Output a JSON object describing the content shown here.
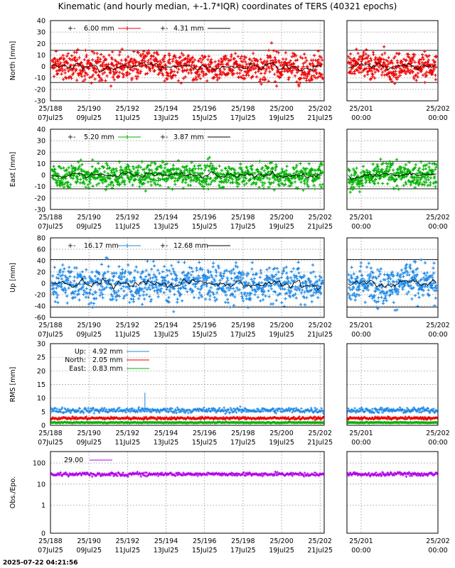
{
  "header": {
    "title": "Kinematic (and hourly median, +-1.7*IQR) coordinates of TERS (40321 epochs)"
  },
  "footer": {
    "timestamp": "2025-07-22 04:21:56"
  },
  "colors": {
    "north": "#ee0000",
    "east": "#00b000",
    "up": "#1e88e5",
    "obs": "#b000e8",
    "median": "#000000",
    "grid": "#a0a0a0"
  },
  "chart_data": [
    {
      "id": "north",
      "type": "scatter",
      "ylabel": "North [mm]",
      "ylim": [
        -30,
        40
      ],
      "yticks": [
        -30,
        -20,
        -10,
        0,
        10,
        20,
        30,
        40
      ],
      "x_ticks_left": [
        {
          "top": "25/188",
          "bottom": "07Jul25"
        },
        {
          "top": "25/190",
          "bottom": "09Jul25"
        },
        {
          "top": "25/192",
          "bottom": "11Jul25"
        },
        {
          "top": "25/194",
          "bottom": "13Jul25"
        },
        {
          "top": "25/196",
          "bottom": "15Jul25"
        },
        {
          "top": "25/198",
          "bottom": "17Jul25"
        },
        {
          "top": "25/200",
          "bottom": "19Jul25"
        },
        {
          "top": "25/202",
          "bottom": "21Jul25"
        }
      ],
      "x_ticks_right": [
        {
          "top": "25/201",
          "bottom": "00:00"
        },
        {
          "top": "25/202",
          "bottom": "00:00"
        }
      ],
      "series": [
        {
          "name": "6.00 mm",
          "role": "kinematic",
          "color": "#ee0000"
        },
        {
          "name": "4.31 mm",
          "role": "median",
          "color": "#000000"
        }
      ],
      "spread": 6.0,
      "envelope": [
        -14,
        14
      ],
      "grid": true
    },
    {
      "id": "east",
      "type": "scatter",
      "ylabel": "East [mm]",
      "ylim": [
        -30,
        40
      ],
      "yticks": [
        -30,
        -20,
        -10,
        0,
        10,
        20,
        30,
        40
      ],
      "x_ticks_left": [
        {
          "top": "25/188",
          "bottom": "07Jul25"
        },
        {
          "top": "25/190",
          "bottom": "09Jul25"
        },
        {
          "top": "25/192",
          "bottom": "11Jul25"
        },
        {
          "top": "25/194",
          "bottom": "13Jul25"
        },
        {
          "top": "25/196",
          "bottom": "15Jul25"
        },
        {
          "top": "25/198",
          "bottom": "17Jul25"
        },
        {
          "top": "25/200",
          "bottom": "19Jul25"
        },
        {
          "top": "25/202",
          "bottom": "21Jul25"
        }
      ],
      "x_ticks_right": [
        {
          "top": "25/201",
          "bottom": "00:00"
        },
        {
          "top": "25/202",
          "bottom": "00:00"
        }
      ],
      "series": [
        {
          "name": "5.20 mm",
          "role": "kinematic",
          "color": "#00b000"
        },
        {
          "name": "3.87 mm",
          "role": "median",
          "color": "#000000"
        }
      ],
      "spread": 5.2,
      "envelope": [
        -12,
        12
      ],
      "grid": true
    },
    {
      "id": "up",
      "type": "scatter",
      "ylabel": "Up [mm]",
      "ylim": [
        -60,
        80
      ],
      "yticks": [
        -60,
        -40,
        -20,
        0,
        20,
        40,
        60,
        80
      ],
      "x_ticks_left": [
        {
          "top": "25/188",
          "bottom": "07Jul25"
        },
        {
          "top": "25/190",
          "bottom": "09Jul25"
        },
        {
          "top": "25/192",
          "bottom": "11Jul25"
        },
        {
          "top": "25/194",
          "bottom": "13Jul25"
        },
        {
          "top": "25/196",
          "bottom": "15Jul25"
        },
        {
          "top": "25/198",
          "bottom": "17Jul25"
        },
        {
          "top": "25/200",
          "bottom": "19Jul25"
        },
        {
          "top": "25/202",
          "bottom": "21Jul25"
        }
      ],
      "x_ticks_right": [
        {
          "top": "25/201",
          "bottom": "00:00"
        },
        {
          "top": "25/202",
          "bottom": "00:00"
        }
      ],
      "series": [
        {
          "name": "16.17 mm",
          "role": "kinematic",
          "color": "#1e88e5"
        },
        {
          "name": "12.68 mm",
          "role": "median",
          "color": "#000000"
        }
      ],
      "spread": 16.17,
      "envelope": [
        -42,
        42
      ],
      "grid": true
    },
    {
      "id": "rms",
      "type": "scatter",
      "ylabel": "RMS [mm]",
      "ylim": [
        0,
        30
      ],
      "yticks": [
        0,
        5,
        10,
        15,
        20,
        25,
        30
      ],
      "x_ticks_left": [
        {
          "top": "25/188",
          "bottom": "07Jul25"
        },
        {
          "top": "25/190",
          "bottom": "09Jul25"
        },
        {
          "top": "25/192",
          "bottom": "11Jul25"
        },
        {
          "top": "25/194",
          "bottom": "13Jul25"
        },
        {
          "top": "25/196",
          "bottom": "15Jul25"
        },
        {
          "top": "25/198",
          "bottom": "17Jul25"
        },
        {
          "top": "25/200",
          "bottom": "19Jul25"
        },
        {
          "top": "25/202",
          "bottom": "21Jul25"
        }
      ],
      "x_ticks_right": [
        {
          "top": "25/201",
          "bottom": "00:00"
        },
        {
          "top": "25/202",
          "bottom": "00:00"
        }
      ],
      "series": [
        {
          "name": "Up:",
          "value": "4.92 mm",
          "level": 5.5,
          "color": "#1e88e5"
        },
        {
          "name": "North:",
          "value": "2.05 mm",
          "level": 2.6,
          "color": "#ee0000"
        },
        {
          "name": "East:",
          "value": "0.83 mm",
          "level": 1.0,
          "color": "#00b000"
        }
      ],
      "outliers": [
        {
          "x": 0.345,
          "y": 12
        }
      ],
      "grid": true
    },
    {
      "id": "obs",
      "type": "scatter",
      "ylabel": "Obs./Epo.",
      "yscale": "log",
      "yticks": [
        {
          "label": "100",
          "level": 1.0
        },
        {
          "label": "10",
          "level": 0.7
        },
        {
          "label": "1",
          "level": 0.4
        },
        {
          "label": "0",
          "level": 0.0
        }
      ],
      "x_ticks_left": [
        {
          "top": "25/188",
          "bottom": "07Jul25"
        },
        {
          "top": "25/190",
          "bottom": "09Jul25"
        },
        {
          "top": "25/192",
          "bottom": "11Jul25"
        },
        {
          "top": "25/194",
          "bottom": "13Jul25"
        },
        {
          "top": "25/196",
          "bottom": "15Jul25"
        },
        {
          "top": "25/198",
          "bottom": "17Jul25"
        },
        {
          "top": "25/200",
          "bottom": "19Jul25"
        },
        {
          "top": "25/202",
          "bottom": "21Jul25"
        }
      ],
      "x_ticks_right": [
        {
          "top": "25/201",
          "bottom": "00:00"
        },
        {
          "top": "25/202",
          "bottom": "00:00"
        }
      ],
      "series": [
        {
          "name": "29.00",
          "value": 29,
          "color": "#b000e8"
        }
      ],
      "grid": true
    }
  ]
}
